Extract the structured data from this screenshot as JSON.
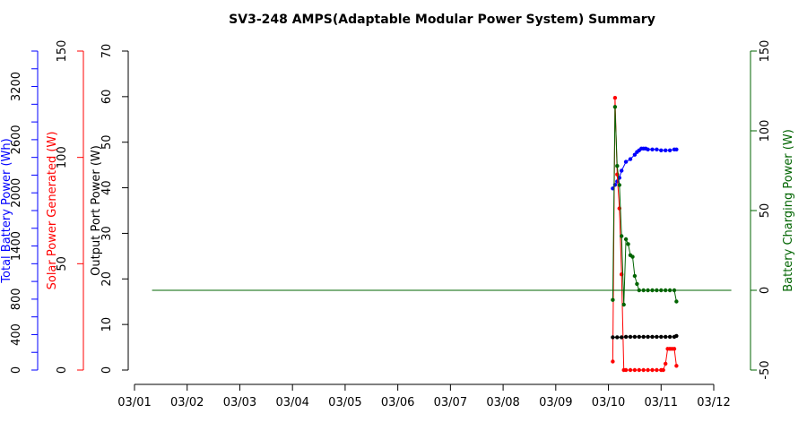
{
  "chart_data": {
    "type": "line",
    "title": "SV3-248 AMPS(Adaptable Modular Power System) Summary",
    "x_axis": {
      "ticks": [
        "03/01",
        "03/02",
        "03/03",
        "03/04",
        "03/05",
        "03/06",
        "03/07",
        "03/08",
        "03/09",
        "03/10",
        "03/11",
        "03/12"
      ],
      "range": [
        "03/01",
        "03/12"
      ]
    },
    "axes": {
      "battery": {
        "label": "Total Battery Power (Wh)",
        "ylim": [
          0,
          3600
        ],
        "ticks": [
          0,
          400,
          800,
          1400,
          2000,
          2600,
          3200
        ],
        "minor_ticks": [
          200,
          600,
          1000,
          1200,
          1600,
          1800,
          2200,
          2400,
          2800,
          3000,
          3400,
          3600
        ],
        "color": "#0000ff"
      },
      "solar": {
        "label": "Solar Power Generated (W)",
        "ylim": [
          0,
          150
        ],
        "ticks": [
          0,
          50,
          100,
          150
        ],
        "color": "#ff0000"
      },
      "output": {
        "label": "Output Port Power (W)",
        "ylim": [
          0,
          70
        ],
        "ticks": [
          0,
          10,
          20,
          30,
          40,
          50,
          60,
          70
        ],
        "color": "#000000"
      },
      "charging": {
        "label": "Battery Charging Power (W)",
        "ylim": [
          -50,
          150
        ],
        "ticks": [
          -50,
          0,
          50,
          100,
          150
        ],
        "color": "#006400"
      }
    },
    "series": [
      {
        "name": "Total Battery Power (Wh)",
        "axis": "battery",
        "color": "#0000ff",
        "x": [
          "2020-03-10 02:00",
          "2020-03-10 03:00",
          "2020-03-10 04:00",
          "2020-03-10 05:00",
          "2020-03-10 06:00",
          "2020-03-10 08:00",
          "2020-03-10 10:00",
          "2020-03-10 12:00",
          "2020-03-10 13:00",
          "2020-03-10 14:00",
          "2020-03-10 15:00",
          "2020-03-10 16:00",
          "2020-03-10 17:00",
          "2020-03-10 18:00",
          "2020-03-10 20:00",
          "2020-03-10 22:00",
          "2020-03-11 00:00",
          "2020-03-11 02:00",
          "2020-03-11 04:00",
          "2020-03-11 06:00",
          "2020-03-11 07:00"
        ],
        "y": [
          2050,
          2090,
          2130,
          2170,
          2250,
          2350,
          2380,
          2430,
          2460,
          2480,
          2500,
          2500,
          2500,
          2490,
          2490,
          2490,
          2480,
          2480,
          2480,
          2490,
          2490
        ]
      },
      {
        "name": "Solar Power Generated (W)",
        "axis": "solar",
        "color": "#ff0000",
        "x": [
          "2020-03-10 02:00",
          "2020-03-10 03:00",
          "2020-03-10 04:00",
          "2020-03-10 05:00",
          "2020-03-10 06:00",
          "2020-03-10 07:00",
          "2020-03-10 08:00",
          "2020-03-10 10:00",
          "2020-03-10 12:00",
          "2020-03-10 14:00",
          "2020-03-10 16:00",
          "2020-03-10 18:00",
          "2020-03-10 20:00",
          "2020-03-10 22:00",
          "2020-03-11 00:00",
          "2020-03-11 01:00",
          "2020-03-11 02:00",
          "2020-03-11 03:00",
          "2020-03-11 04:00",
          "2020-03-11 05:00",
          "2020-03-11 06:00",
          "2020-03-11 07:00"
        ],
        "y": [
          4,
          128,
          92,
          76,
          45,
          0,
          0,
          0,
          0,
          0,
          0,
          0,
          0,
          0,
          0,
          0,
          3,
          10,
          10,
          10,
          10,
          2
        ]
      },
      {
        "name": "Output Port Power (W)",
        "axis": "output",
        "color": "#000000",
        "x": [
          "2020-03-10 02:00",
          "2020-03-10 04:00",
          "2020-03-10 06:00",
          "2020-03-10 08:00",
          "2020-03-10 10:00",
          "2020-03-10 12:00",
          "2020-03-10 14:00",
          "2020-03-10 16:00",
          "2020-03-10 18:00",
          "2020-03-10 20:00",
          "2020-03-10 22:00",
          "2020-03-11 00:00",
          "2020-03-11 02:00",
          "2020-03-11 04:00",
          "2020-03-11 06:00",
          "2020-03-11 07:00"
        ],
        "y": [
          7.2,
          7.2,
          7.2,
          7.3,
          7.3,
          7.3,
          7.3,
          7.3,
          7.3,
          7.3,
          7.3,
          7.3,
          7.3,
          7.3,
          7.3,
          7.5
        ]
      },
      {
        "name": "Battery Charging Power (W)",
        "axis": "charging",
        "color": "#006400",
        "x": [
          "2020-03-10 02:00",
          "2020-03-10 03:00",
          "2020-03-10 04:00",
          "2020-03-10 05:00",
          "2020-03-10 06:00",
          "2020-03-10 07:00",
          "2020-03-10 08:00",
          "2020-03-10 09:00",
          "2020-03-10 10:00",
          "2020-03-10 11:00",
          "2020-03-10 12:00",
          "2020-03-10 13:00",
          "2020-03-10 14:00",
          "2020-03-10 16:00",
          "2020-03-10 18:00",
          "2020-03-10 20:00",
          "2020-03-10 22:00",
          "2020-03-11 00:00",
          "2020-03-11 02:00",
          "2020-03-11 04:00",
          "2020-03-11 06:00",
          "2020-03-11 07:00"
        ],
        "y": [
          -6,
          115,
          78,
          66,
          34,
          -9,
          32,
          29,
          22,
          21,
          9,
          4,
          0,
          0,
          0,
          0,
          0,
          0,
          0,
          0,
          0,
          -7
        ]
      },
      {
        "name": "",
        "axis": "charging",
        "color": "#006400",
        "style": "flat-line",
        "x": [
          "2020-03-01 08:00",
          "2020-03-12 08:00"
        ],
        "y": [
          0,
          0
        ]
      }
    ]
  }
}
